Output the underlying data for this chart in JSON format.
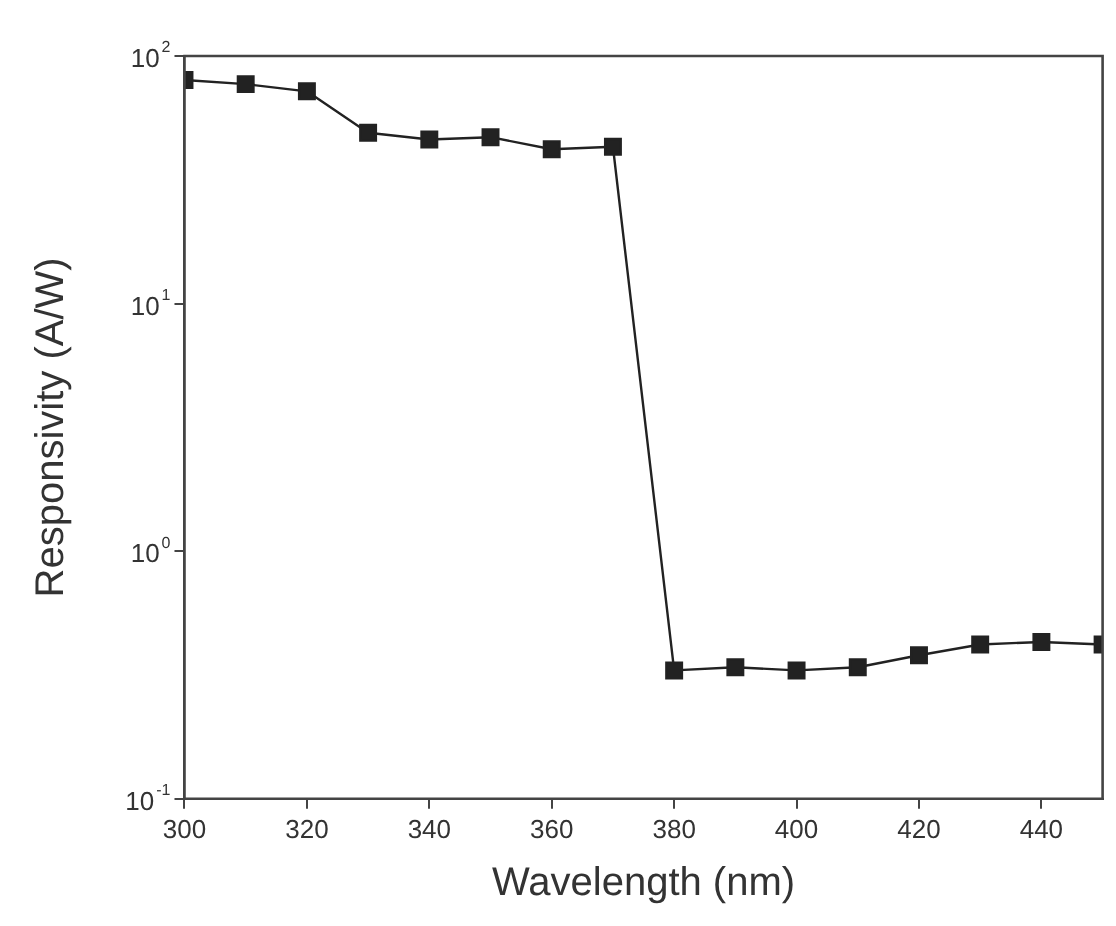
{
  "chart_data": {
    "type": "line",
    "xlabel": "Wavelength (nm)",
    "ylabel": "Responsivity (A/W)",
    "x": [
      300,
      310,
      320,
      330,
      340,
      350,
      360,
      370,
      380,
      390,
      400,
      410,
      420,
      430,
      440,
      450
    ],
    "series": [
      {
        "color": "#222222",
        "values": [
          80,
          77,
          72,
          49,
          46,
          47,
          42,
          43,
          0.33,
          0.34,
          0.33,
          0.34,
          0.38,
          0.42,
          0.43,
          0.42
        ]
      }
    ],
    "xlim": [
      300,
      450
    ],
    "xticks": [
      300,
      320,
      340,
      360,
      380,
      400,
      420,
      440
    ],
    "ylim": [
      0.1,
      100
    ],
    "yticks": [
      {
        "value": 0.1,
        "label": "10$^{-1}$"
      },
      {
        "value": 1,
        "label": "10$^{0}$"
      },
      {
        "value": 10,
        "label": "10$^{1}$"
      },
      {
        "value": 100,
        "label": "10$^{2}$"
      }
    ],
    "log": "y",
    "marker": "square",
    "line_style": "solid",
    "grid": false,
    "legend": false
  }
}
